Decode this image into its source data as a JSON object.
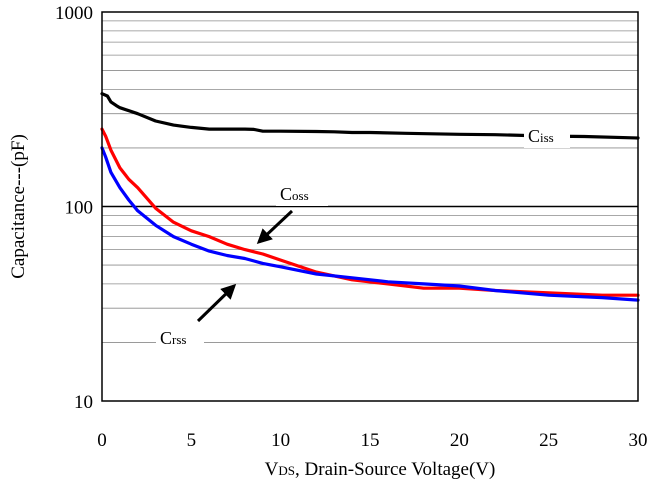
{
  "chart_data": {
    "type": "line",
    "title": "",
    "xlabel_prefix": "V",
    "xlabel_sub": "DS",
    "xlabel_rest": ", Drain-Source Voltage(V)",
    "ylabel": "Capacitance---(pF)",
    "xlim": [
      0,
      30
    ],
    "ylim": [
      10,
      1000
    ],
    "yscale": "log",
    "grid": true,
    "x_ticks": [
      0,
      5,
      10,
      15,
      20,
      25,
      30
    ],
    "x_tick_labels": [
      "0",
      "5",
      "10",
      "15",
      "20",
      "25",
      "30"
    ],
    "y_ticks": [
      10,
      100,
      1000
    ],
    "y_tick_labels": [
      "10",
      "100",
      "1000"
    ],
    "series": [
      {
        "name": "Ciss",
        "color": "#000000",
        "x": [
          0,
          0.3,
          0.5,
          0.8,
          1,
          2,
          3,
          4,
          5,
          6,
          7,
          8,
          8.5,
          9,
          10,
          12,
          13,
          14,
          15,
          17,
          20,
          22,
          25,
          27,
          30
        ],
        "y": [
          380,
          370,
          345,
          330,
          322,
          300,
          275,
          262,
          255,
          250,
          250,
          250,
          249,
          244,
          244,
          243,
          242,
          240,
          240,
          238,
          235,
          234,
          230,
          229,
          225
        ]
      },
      {
        "name": "Coss",
        "color": "#ff0000",
        "x": [
          0,
          0.2,
          0.5,
          1,
          1.5,
          2,
          3,
          4,
          5,
          6,
          7,
          8,
          9,
          10,
          12,
          14,
          16,
          18,
          20,
          22,
          25,
          28,
          30
        ],
        "y": [
          250,
          230,
          195,
          158,
          138,
          125,
          98,
          83,
          75,
          70,
          64,
          60,
          57,
          53,
          46,
          42,
          40,
          38,
          38,
          37,
          36,
          35,
          35
        ]
      },
      {
        "name": "Crss",
        "color": "#0000ff",
        "x": [
          0,
          0.2,
          0.5,
          1,
          1.5,
          2,
          3,
          4,
          5,
          6,
          7,
          8,
          9,
          10,
          12,
          14,
          16,
          18,
          20,
          22,
          25,
          28,
          30
        ],
        "y": [
          200,
          180,
          150,
          125,
          108,
          95,
          80,
          70,
          64,
          59,
          56,
          54,
          51,
          49,
          45,
          43,
          41,
          40,
          39,
          37,
          35,
          34,
          33
        ]
      }
    ],
    "annotations": [
      {
        "label": "Ciss",
        "label_main": "C",
        "label_sub": "iss"
      },
      {
        "label": "Coss",
        "label_main": "C",
        "label_sub": "oss"
      },
      {
        "label": "Crss",
        "label_main": "C",
        "label_sub": "rss"
      }
    ]
  }
}
